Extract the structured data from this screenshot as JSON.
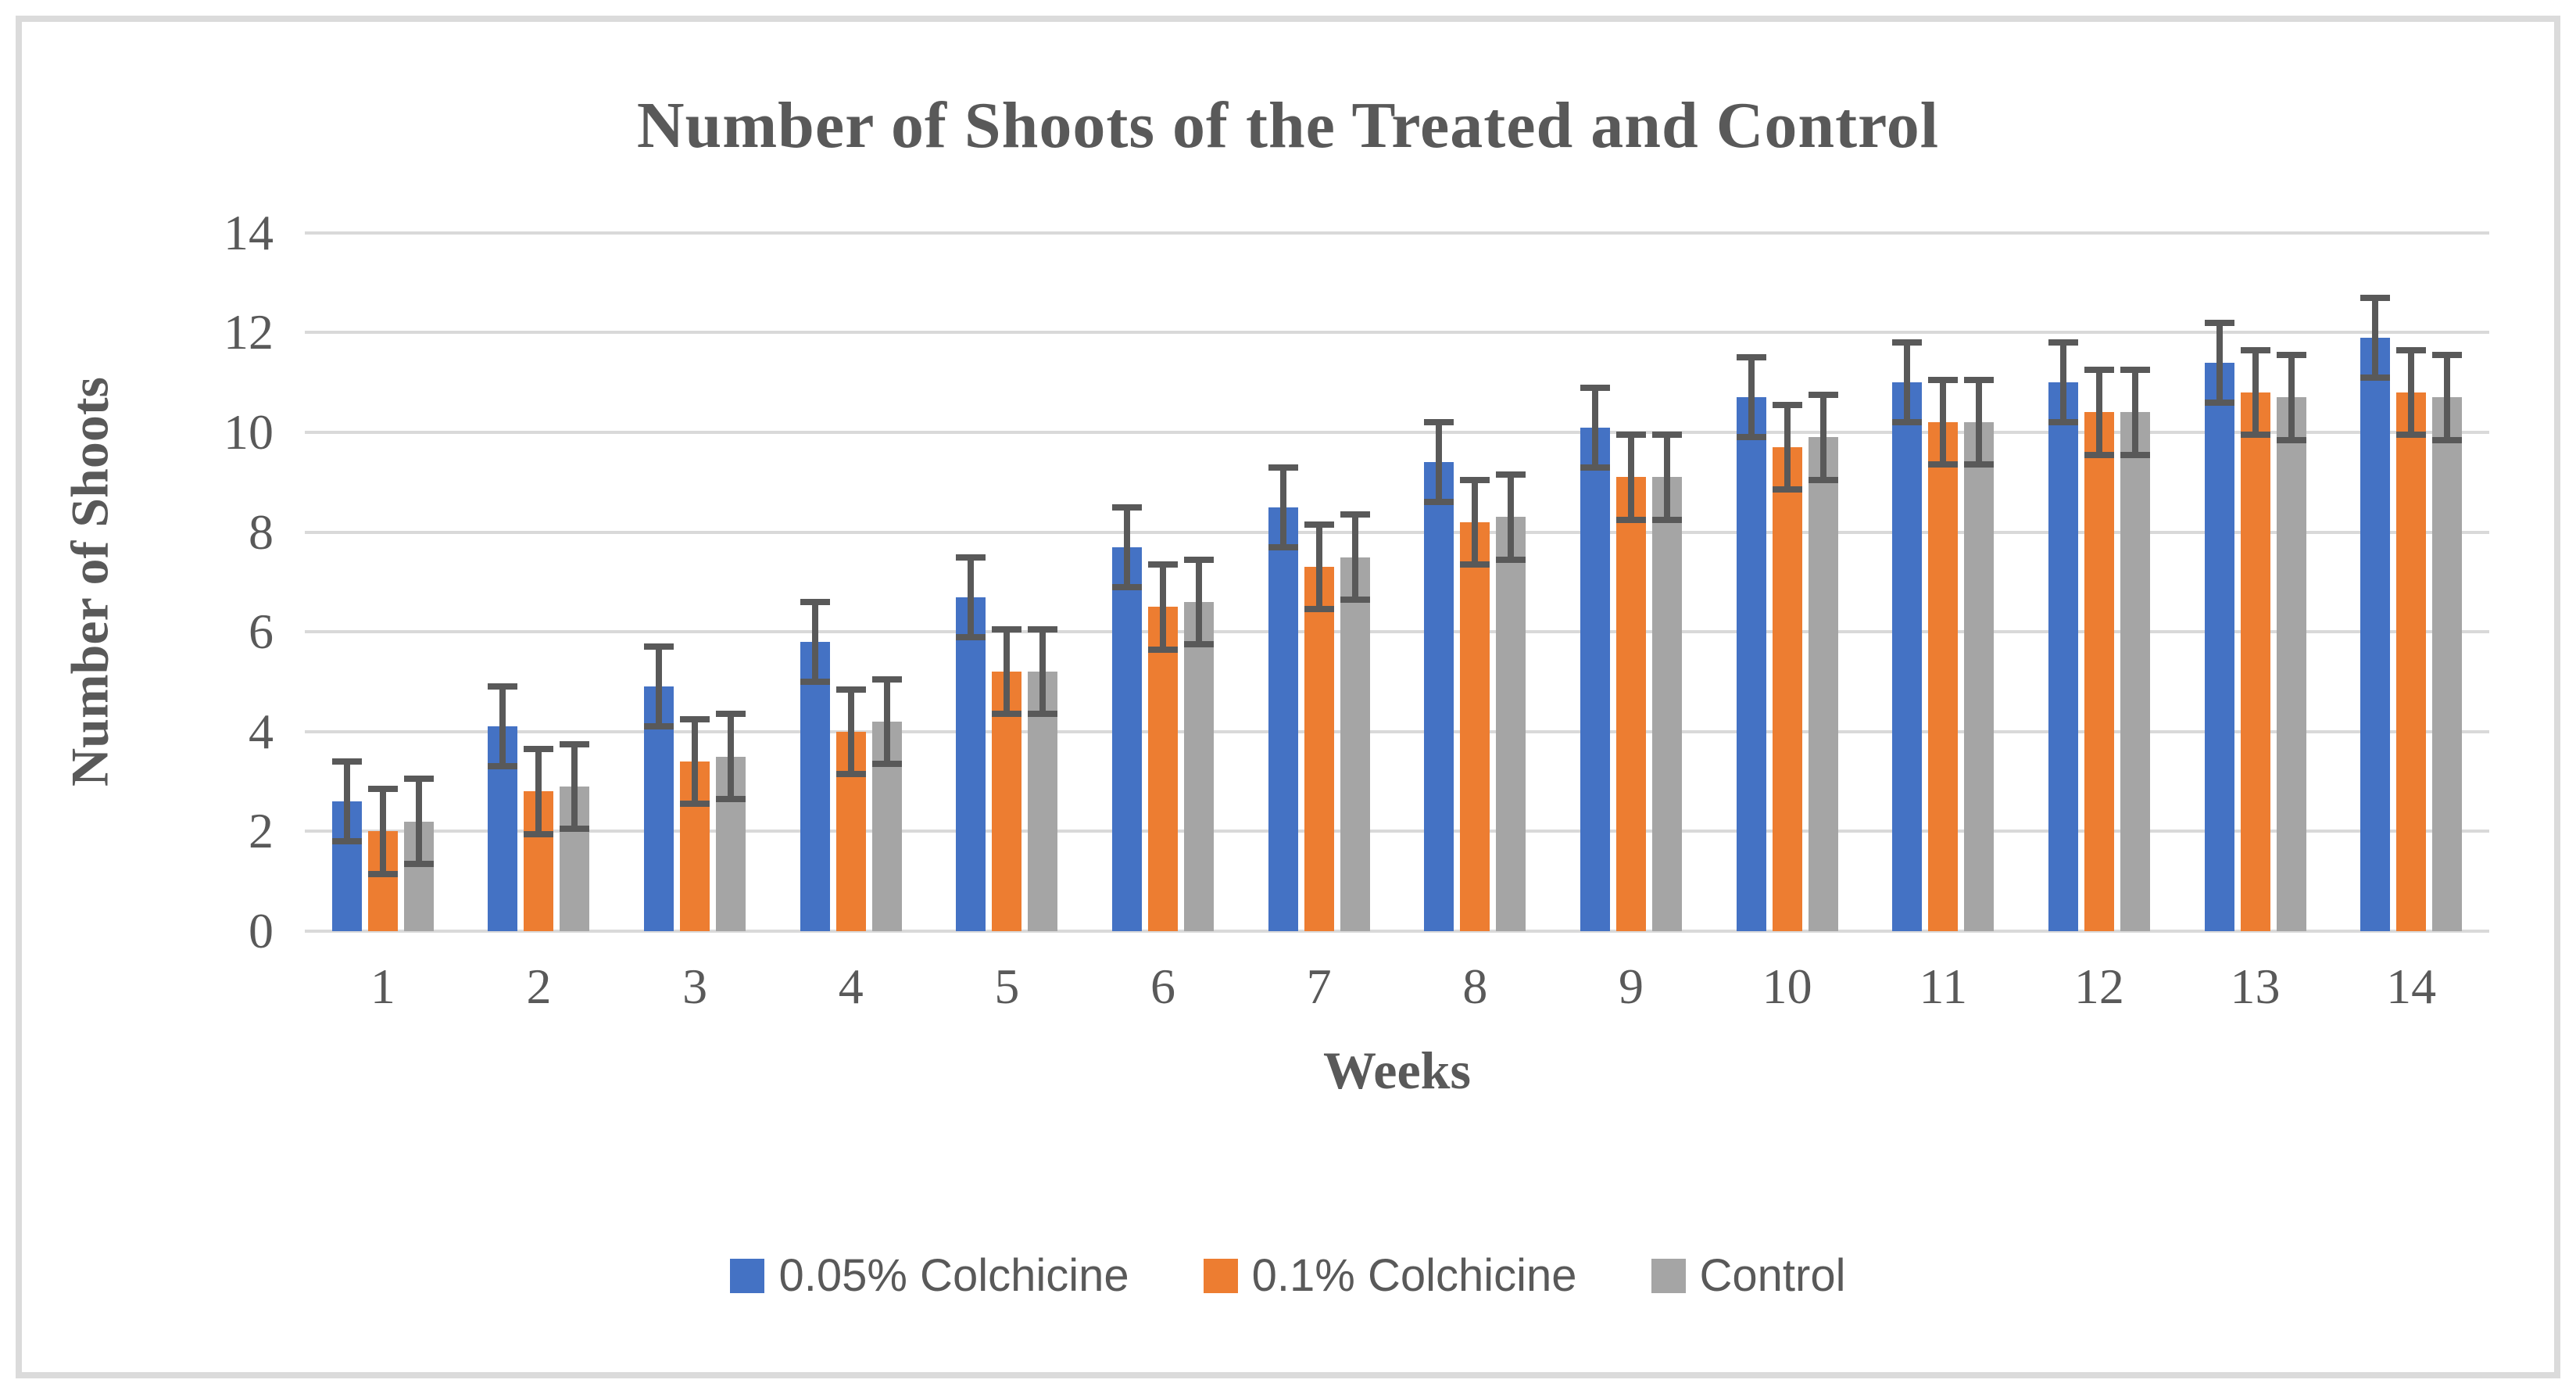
{
  "chart_data": {
    "type": "bar",
    "title": "Number of Shoots of the Treated and Control",
    "xlabel": "Weeks",
    "ylabel": "Number of Shoots",
    "categories": [
      "1",
      "2",
      "3",
      "4",
      "5",
      "6",
      "7",
      "8",
      "9",
      "10",
      "11",
      "12",
      "13",
      "14"
    ],
    "series": [
      {
        "name": "0.05% Colchicine",
        "color": "#4472C4",
        "values": [
          2.6,
          4.1,
          4.9,
          5.8,
          6.7,
          7.7,
          8.5,
          9.4,
          10.1,
          10.7,
          11.0,
          11.0,
          11.4,
          11.9
        ],
        "error": 0.8
      },
      {
        "name": "0.1% Colchicine",
        "color": "#ED7D31",
        "values": [
          2.0,
          2.8,
          3.4,
          4.0,
          5.2,
          6.5,
          7.3,
          8.2,
          9.1,
          9.7,
          10.2,
          10.4,
          10.8,
          10.8
        ],
        "error": 0.85
      },
      {
        "name": "Control",
        "color": "#A5A5A5",
        "values": [
          2.2,
          2.9,
          3.5,
          4.2,
          5.2,
          6.6,
          7.5,
          8.3,
          9.1,
          9.9,
          10.2,
          10.4,
          10.7,
          10.7
        ],
        "error": 0.85
      }
    ],
    "ylim": [
      0,
      14
    ],
    "ytick_step": 2,
    "grid": true,
    "legend_position": "bottom",
    "error_bar_color": "#595959",
    "gridline_color": "#D9D9D9",
    "text_color": "#595959"
  }
}
